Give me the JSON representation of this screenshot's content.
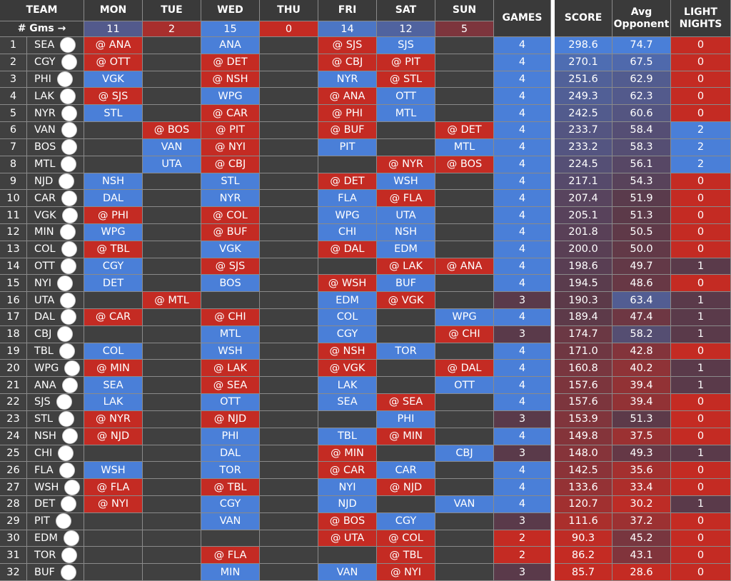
{
  "header": {
    "columns": [
      "TEAM",
      "MON",
      "TUE",
      "WED",
      "THU",
      "FRI",
      "SAT",
      "SUN",
      "GAMES",
      "SCORE",
      "Avg Opponent",
      "LIGHT NIGHTS"
    ],
    "games_label": "# Gms →",
    "games_per_day": [
      11,
      2,
      15,
      0,
      14,
      12,
      5
    ]
  },
  "table": {
    "rows": [
      {
        "rank": 1,
        "team": "SEA",
        "days": [
          "@ ANA",
          null,
          "ANA",
          null,
          "@ SJS",
          "SJS",
          null
        ],
        "games": 4,
        "score": "298.6",
        "avg_opponent": "74.7",
        "light_nights": 0
      },
      {
        "rank": 2,
        "team": "CGY",
        "days": [
          "@ OTT",
          null,
          "@ DET",
          null,
          "@ CBJ",
          "@ PIT",
          null
        ],
        "games": 4,
        "score": "270.1",
        "avg_opponent": "67.5",
        "light_nights": 0
      },
      {
        "rank": 3,
        "team": "PHI",
        "days": [
          "VGK",
          null,
          "@ NSH",
          null,
          "NYR",
          "@ STL",
          null
        ],
        "games": 4,
        "score": "251.6",
        "avg_opponent": "62.9",
        "light_nights": 0
      },
      {
        "rank": 4,
        "team": "LAK",
        "days": [
          "@ SJS",
          null,
          "WPG",
          null,
          "@ ANA",
          "OTT",
          null
        ],
        "games": 4,
        "score": "249.3",
        "avg_opponent": "62.3",
        "light_nights": 0
      },
      {
        "rank": 5,
        "team": "NYR",
        "days": [
          "STL",
          null,
          "@ CAR",
          null,
          "@ PHI",
          "MTL",
          null
        ],
        "games": 4,
        "score": "242.5",
        "avg_opponent": "60.6",
        "light_nights": 0
      },
      {
        "rank": 6,
        "team": "VAN",
        "days": [
          null,
          "@ BOS",
          "@ PIT",
          null,
          "@ BUF",
          null,
          "@ DET"
        ],
        "games": 4,
        "score": "233.7",
        "avg_opponent": "58.4",
        "light_nights": 2
      },
      {
        "rank": 7,
        "team": "BOS",
        "days": [
          null,
          "VAN",
          "@ NYI",
          null,
          "PIT",
          null,
          "MTL"
        ],
        "games": 4,
        "score": "233.2",
        "avg_opponent": "58.3",
        "light_nights": 2
      },
      {
        "rank": 8,
        "team": "MTL",
        "days": [
          null,
          "UTA",
          "@ CBJ",
          null,
          null,
          "@ NYR",
          "@ BOS"
        ],
        "games": 4,
        "score": "224.5",
        "avg_opponent": "56.1",
        "light_nights": 2
      },
      {
        "rank": 9,
        "team": "NJD",
        "days": [
          "NSH",
          null,
          "STL",
          null,
          "@ DET",
          "WSH",
          null
        ],
        "games": 4,
        "score": "217.1",
        "avg_opponent": "54.3",
        "light_nights": 0
      },
      {
        "rank": 10,
        "team": "CAR",
        "days": [
          "DAL",
          null,
          "NYR",
          null,
          "FLA",
          "@ FLA",
          null
        ],
        "games": 4,
        "score": "207.4",
        "avg_opponent": "51.9",
        "light_nights": 0
      },
      {
        "rank": 11,
        "team": "VGK",
        "days": [
          "@ PHI",
          null,
          "@ COL",
          null,
          "WPG",
          "UTA",
          null
        ],
        "games": 4,
        "score": "205.1",
        "avg_opponent": "51.3",
        "light_nights": 0
      },
      {
        "rank": 12,
        "team": "MIN",
        "days": [
          "WPG",
          null,
          "@ BUF",
          null,
          "CHI",
          "NSH",
          null
        ],
        "games": 4,
        "score": "201.8",
        "avg_opponent": "50.5",
        "light_nights": 0
      },
      {
        "rank": 13,
        "team": "COL",
        "days": [
          "@ TBL",
          null,
          "VGK",
          null,
          "@ DAL",
          "EDM",
          null
        ],
        "games": 4,
        "score": "200.0",
        "avg_opponent": "50.0",
        "light_nights": 0
      },
      {
        "rank": 14,
        "team": "OTT",
        "days": [
          "CGY",
          null,
          "@ SJS",
          null,
          null,
          "@ LAK",
          "@ ANA"
        ],
        "games": 4,
        "score": "198.6",
        "avg_opponent": "49.7",
        "light_nights": 1
      },
      {
        "rank": 15,
        "team": "NYI",
        "days": [
          "DET",
          null,
          "BOS",
          null,
          "@ WSH",
          "BUF",
          null
        ],
        "games": 4,
        "score": "194.5",
        "avg_opponent": "48.6",
        "light_nights": 0
      },
      {
        "rank": 16,
        "team": "UTA",
        "days": [
          null,
          "@ MTL",
          null,
          null,
          "EDM",
          "@ VGK",
          null
        ],
        "games": 3,
        "score": "190.3",
        "avg_opponent": "63.4",
        "light_nights": 1
      },
      {
        "rank": 17,
        "team": "DAL",
        "days": [
          "@ CAR",
          null,
          "@ CHI",
          null,
          "COL",
          null,
          "WPG"
        ],
        "games": 4,
        "score": "189.4",
        "avg_opponent": "47.4",
        "light_nights": 1
      },
      {
        "rank": 18,
        "team": "CBJ",
        "days": [
          null,
          null,
          "MTL",
          null,
          "CGY",
          null,
          "@ CHI"
        ],
        "games": 3,
        "score": "174.7",
        "avg_opponent": "58.2",
        "light_nights": 1
      },
      {
        "rank": 19,
        "team": "TBL",
        "days": [
          "COL",
          null,
          "WSH",
          null,
          "@ NSH",
          "TOR",
          null
        ],
        "games": 4,
        "score": "171.0",
        "avg_opponent": "42.8",
        "light_nights": 0
      },
      {
        "rank": 20,
        "team": "WPG",
        "days": [
          "@ MIN",
          null,
          "@ LAK",
          null,
          "@ VGK",
          null,
          "@ DAL"
        ],
        "games": 4,
        "score": "160.8",
        "avg_opponent": "40.2",
        "light_nights": 1
      },
      {
        "rank": 21,
        "team": "ANA",
        "days": [
          "SEA",
          null,
          "@ SEA",
          null,
          "LAK",
          null,
          "OTT"
        ],
        "games": 4,
        "score": "157.6",
        "avg_opponent": "39.4",
        "light_nights": 1
      },
      {
        "rank": 22,
        "team": "SJS",
        "days": [
          "LAK",
          null,
          "OTT",
          null,
          "SEA",
          "@ SEA",
          null
        ],
        "games": 4,
        "score": "157.6",
        "avg_opponent": "39.4",
        "light_nights": 0
      },
      {
        "rank": 23,
        "team": "STL",
        "days": [
          "@ NYR",
          null,
          "@ NJD",
          null,
          null,
          "PHI",
          null
        ],
        "games": 3,
        "score": "153.9",
        "avg_opponent": "51.3",
        "light_nights": 0
      },
      {
        "rank": 24,
        "team": "NSH",
        "days": [
          "@ NJD",
          null,
          "PHI",
          null,
          "TBL",
          "@ MIN",
          null
        ],
        "games": 4,
        "score": "149.8",
        "avg_opponent": "37.5",
        "light_nights": 0
      },
      {
        "rank": 25,
        "team": "CHI",
        "days": [
          null,
          null,
          "DAL",
          null,
          "@ MIN",
          null,
          "CBJ"
        ],
        "games": 3,
        "score": "148.0",
        "avg_opponent": "49.3",
        "light_nights": 1
      },
      {
        "rank": 26,
        "team": "FLA",
        "days": [
          "WSH",
          null,
          "TOR",
          null,
          "@ CAR",
          "CAR",
          null
        ],
        "games": 4,
        "score": "142.5",
        "avg_opponent": "35.6",
        "light_nights": 0
      },
      {
        "rank": 27,
        "team": "WSH",
        "days": [
          "@ FLA",
          null,
          "@ TBL",
          null,
          "NYI",
          "@ NJD",
          null
        ],
        "games": 4,
        "score": "133.6",
        "avg_opponent": "33.4",
        "light_nights": 0
      },
      {
        "rank": 28,
        "team": "DET",
        "days": [
          "@ NYI",
          null,
          "CGY",
          null,
          "NJD",
          null,
          "VAN"
        ],
        "games": 4,
        "score": "120.7",
        "avg_opponent": "30.2",
        "light_nights": 1
      },
      {
        "rank": 29,
        "team": "PIT",
        "days": [
          null,
          null,
          "VAN",
          null,
          "@ BOS",
          "CGY",
          null
        ],
        "games": 3,
        "score": "111.6",
        "avg_opponent": "37.2",
        "light_nights": 0
      },
      {
        "rank": 30,
        "team": "EDM",
        "days": [
          null,
          null,
          null,
          null,
          "@ UTA",
          "@ COL",
          null
        ],
        "games": 2,
        "score": "90.3",
        "avg_opponent": "45.2",
        "light_nights": 0
      },
      {
        "rank": 31,
        "team": "TOR",
        "days": [
          null,
          null,
          "@ FLA",
          null,
          null,
          "@ TBL",
          null
        ],
        "games": 2,
        "score": "86.2",
        "avg_opponent": "43.1",
        "light_nights": 0
      },
      {
        "rank": 32,
        "team": "BUF",
        "days": [
          null,
          null,
          "MIN",
          null,
          "VAN",
          "@ NYI",
          null
        ],
        "games": 3,
        "score": "85.7",
        "avg_opponent": "28.6",
        "light_nights": 0
      }
    ]
  }
}
